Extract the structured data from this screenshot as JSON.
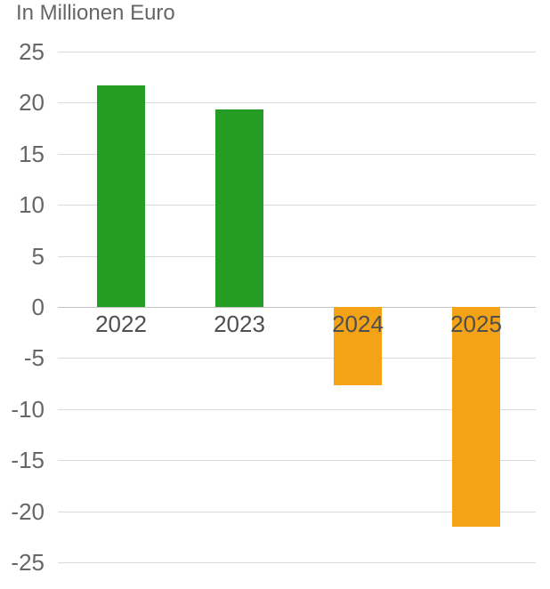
{
  "chart_data": {
    "type": "bar",
    "title": "In Millionen Euro",
    "categories": [
      "2022",
      "2023",
      "2024",
      "2025"
    ],
    "values": [
      21.7,
      19.3,
      -7.7,
      -21.5
    ],
    "xlabel": "",
    "ylabel": "In Millionen Euro",
    "ylim": [
      -25,
      25
    ],
    "yticks": [
      25,
      20,
      15,
      10,
      5,
      0,
      -5,
      -10,
      -15,
      -20,
      -25
    ],
    "grid": true,
    "legend": "none",
    "bar_colors": [
      "#259c24",
      "#259c24",
      "#f4a317",
      "#f4a317"
    ],
    "positive_color": "#259c24",
    "negative_color": "#f4a317",
    "gridline_color": "#dadada",
    "zeroline_color": "#c4c4c4",
    "title_color": "#666666",
    "axis_text_color": "#666666",
    "category_text_color": "#4f4f4f",
    "background_color": "#ffffff"
  }
}
